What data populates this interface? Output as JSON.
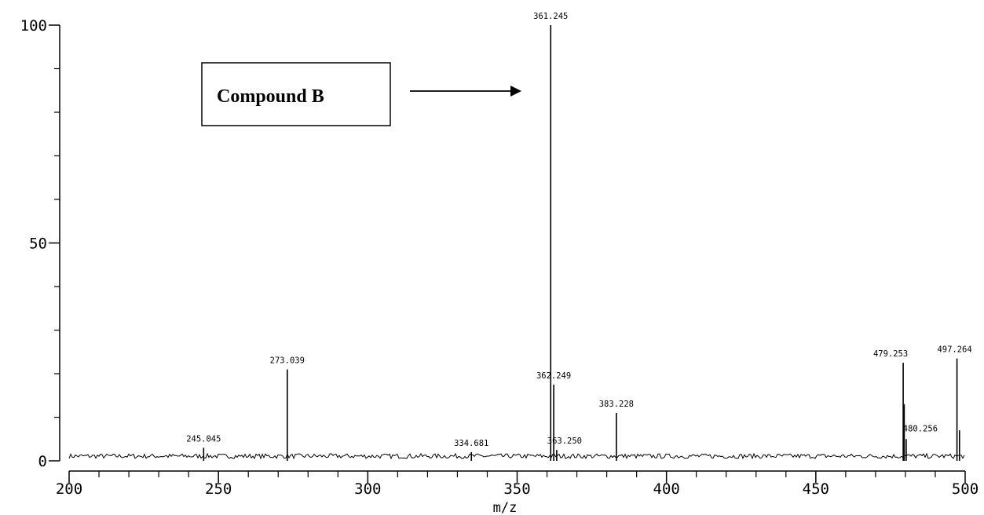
{
  "chart_data": {
    "type": "line",
    "xlabel": "m/z",
    "ylabel": "",
    "xlim": [
      200,
      500
    ],
    "ylim": [
      0,
      100
    ],
    "x_ticks": [
      "200",
      "250",
      "300",
      "350",
      "400",
      "450",
      "500"
    ],
    "y_ticks": [
      "0",
      "50",
      "100"
    ],
    "grid": false,
    "peaks": [
      {
        "mz": 245.045,
        "intensity": 3,
        "label": "245.045"
      },
      {
        "mz": 273.039,
        "intensity": 21,
        "label": "273.039"
      },
      {
        "mz": 334.681,
        "intensity": 2,
        "label": "334.681"
      },
      {
        "mz": 361.245,
        "intensity": 100,
        "label": "361.245"
      },
      {
        "mz": 362.249,
        "intensity": 17.5,
        "label": "362.249"
      },
      {
        "mz": 363.25,
        "intensity": 2.5,
        "label": "363.250"
      },
      {
        "mz": 383.228,
        "intensity": 11,
        "label": "383.228"
      },
      {
        "mz": 479.253,
        "intensity": 22.5,
        "label": "479.253"
      },
      {
        "mz": 479.6,
        "intensity": 13,
        "label": ""
      },
      {
        "mz": 480.256,
        "intensity": 5,
        "label": "480.256"
      },
      {
        "mz": 497.264,
        "intensity": 23.5,
        "label": "497.264"
      },
      {
        "mz": 498.1,
        "intensity": 7,
        "label": ""
      }
    ],
    "noise_level": 1.2,
    "annotation": {
      "text": "Compound B",
      "points_to_mz": 361.245
    }
  }
}
